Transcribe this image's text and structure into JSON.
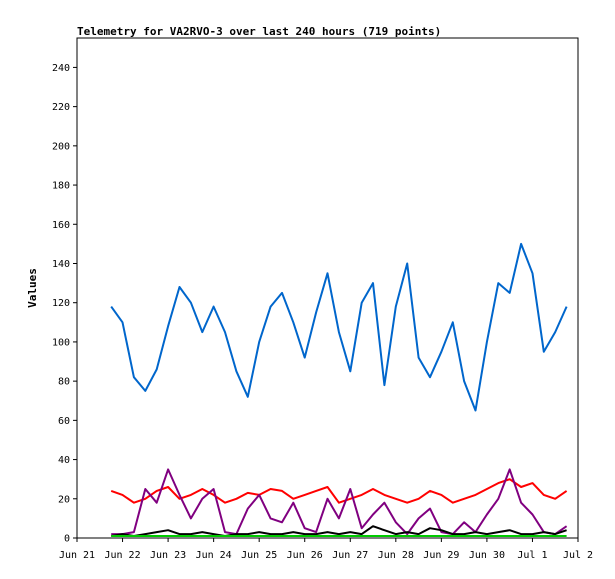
{
  "chart_data": {
    "type": "line",
    "title": "Telemetry for VA2RVO-3 over last 240 hours (719 points)",
    "ylabel": "Values",
    "xlabel": "",
    "ylim": [
      0,
      255
    ],
    "yticks": [
      0,
      20,
      40,
      60,
      80,
      100,
      120,
      140,
      160,
      180,
      200,
      220,
      240
    ],
    "xlim": [
      0,
      11
    ],
    "xticks": [
      {
        "x": 0,
        "label": "Jun 21"
      },
      {
        "x": 1,
        "label": "Jun 22"
      },
      {
        "x": 2,
        "label": "Jun 23"
      },
      {
        "x": 3,
        "label": "Jun 24"
      },
      {
        "x": 4,
        "label": "Jun 25"
      },
      {
        "x": 5,
        "label": "Jun 26"
      },
      {
        "x": 6,
        "label": "Jun 27"
      },
      {
        "x": 7,
        "label": "Jun 28"
      },
      {
        "x": 8,
        "label": "Jun 29"
      },
      {
        "x": 9,
        "label": "Jun 30"
      },
      {
        "x": 10,
        "label": "Jul 1"
      },
      {
        "x": 11,
        "label": "Jul 2"
      }
    ],
    "grid": false,
    "legend": "none",
    "series": [
      {
        "color": "#0066cc",
        "x": [
          0.75,
          1.0,
          1.25,
          1.5,
          1.75,
          2.0,
          2.25,
          2.5,
          2.75,
          3.0,
          3.25,
          3.5,
          3.75,
          4.0,
          4.25,
          4.5,
          4.75,
          5.0,
          5.25,
          5.5,
          5.75,
          6.0,
          6.25,
          6.5,
          6.75,
          7.0,
          7.25,
          7.5,
          7.75,
          8.0,
          8.25,
          8.5,
          8.75,
          9.0,
          9.25,
          9.5,
          9.75,
          10.0,
          10.25,
          10.5,
          10.75
        ],
        "y": [
          118,
          110,
          82,
          75,
          86,
          108,
          128,
          120,
          105,
          118,
          105,
          85,
          72,
          100,
          118,
          125,
          110,
          92,
          115,
          135,
          105,
          85,
          120,
          130,
          78,
          118,
          140,
          92,
          82,
          95,
          110,
          80,
          65,
          100,
          130,
          125,
          150,
          135,
          95,
          105,
          118
        ]
      },
      {
        "color": "#ff0000",
        "x": [
          0.75,
          1.0,
          1.25,
          1.5,
          1.75,
          2.0,
          2.25,
          2.5,
          2.75,
          3.0,
          3.25,
          3.5,
          3.75,
          4.0,
          4.25,
          4.5,
          4.75,
          5.0,
          5.25,
          5.5,
          5.75,
          6.0,
          6.25,
          6.5,
          6.75,
          7.0,
          7.25,
          7.5,
          7.75,
          8.0,
          8.25,
          8.5,
          8.75,
          9.0,
          9.25,
          9.5,
          9.75,
          10.0,
          10.25,
          10.5,
          10.75
        ],
        "y": [
          24,
          22,
          18,
          20,
          24,
          26,
          20,
          22,
          25,
          22,
          18,
          20,
          23,
          22,
          25,
          24,
          20,
          22,
          24,
          26,
          18,
          20,
          22,
          25,
          22,
          20,
          18,
          20,
          24,
          22,
          18,
          20,
          22,
          25,
          28,
          30,
          26,
          28,
          22,
          20,
          24
        ]
      },
      {
        "color": "#800080",
        "x": [
          0.75,
          1.0,
          1.25,
          1.5,
          1.75,
          2.0,
          2.25,
          2.5,
          2.75,
          3.0,
          3.25,
          3.5,
          3.75,
          4.0,
          4.25,
          4.5,
          4.75,
          5.0,
          5.25,
          5.5,
          5.75,
          6.0,
          6.25,
          6.5,
          6.75,
          7.0,
          7.25,
          7.5,
          7.75,
          8.0,
          8.25,
          8.5,
          8.75,
          9.0,
          9.25,
          9.5,
          9.75,
          10.0,
          10.25,
          10.5,
          10.75
        ],
        "y": [
          2,
          2,
          3,
          25,
          18,
          35,
          22,
          10,
          20,
          25,
          3,
          2,
          15,
          22,
          10,
          8,
          18,
          5,
          3,
          20,
          10,
          25,
          5,
          12,
          18,
          8,
          2,
          10,
          15,
          3,
          2,
          8,
          3,
          12,
          20,
          35,
          18,
          12,
          3,
          2,
          6
        ]
      },
      {
        "color": "#000000",
        "x": [
          0.75,
          1.0,
          1.25,
          1.5,
          1.75,
          2.0,
          2.25,
          2.5,
          2.75,
          3.0,
          3.25,
          3.5,
          3.75,
          4.0,
          4.25,
          4.5,
          4.75,
          5.0,
          5.25,
          5.5,
          5.75,
          6.0,
          6.25,
          6.5,
          6.75,
          7.0,
          7.25,
          7.5,
          7.75,
          8.0,
          8.25,
          8.5,
          8.75,
          9.0,
          9.25,
          9.5,
          9.75,
          10.0,
          10.25,
          10.5,
          10.75
        ],
        "y": [
          1,
          2,
          1,
          2,
          3,
          4,
          2,
          2,
          3,
          2,
          1,
          2,
          2,
          3,
          2,
          2,
          3,
          2,
          2,
          3,
          2,
          3,
          2,
          6,
          4,
          2,
          3,
          2,
          5,
          4,
          2,
          2,
          3,
          2,
          3,
          4,
          2,
          2,
          3,
          2,
          4
        ]
      },
      {
        "color": "#00cc00",
        "x": [
          0.75,
          1.5,
          2.25,
          3.0,
          3.75,
          4.5,
          5.25,
          6.0,
          6.75,
          7.5,
          8.25,
          9.0,
          9.75,
          10.5,
          10.75
        ],
        "y": [
          1,
          1,
          1,
          1,
          1,
          1,
          1,
          1,
          1,
          1,
          1,
          1,
          1,
          1,
          1
        ]
      }
    ]
  }
}
